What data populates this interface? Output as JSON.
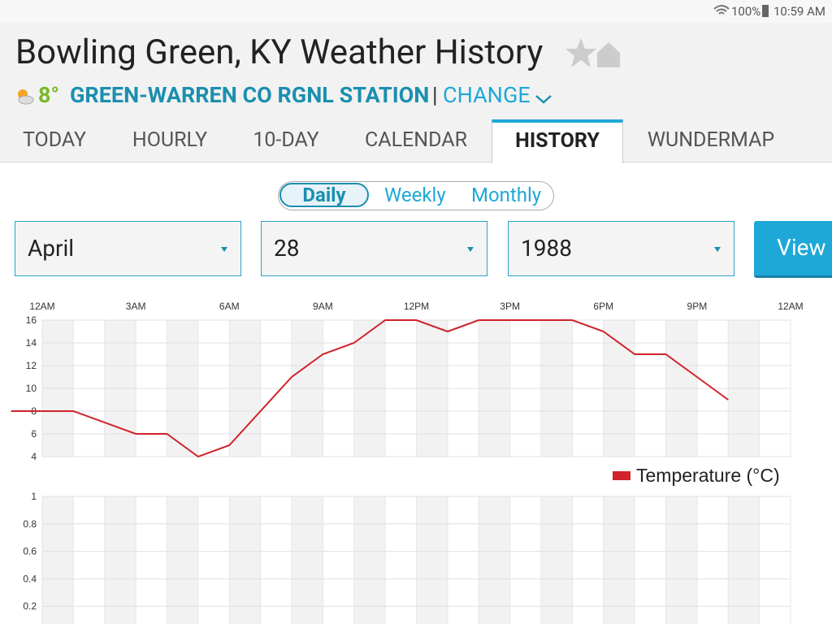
{
  "status_bar": {
    "battery": "100%",
    "time": "10:59 AM"
  },
  "header": {
    "title": "Bowling Green, KY Weather History",
    "temperature": "8°",
    "station": "GREEN-WARREN CO RGNL STATION",
    "separator": "|",
    "change": "CHANGE"
  },
  "tabs": [
    "TODAY",
    "HOURLY",
    "10-DAY",
    "CALENDAR",
    "HISTORY",
    "WUNDERMAP"
  ],
  "period_toggle": [
    "Daily",
    "Weekly",
    "Monthly"
  ],
  "selectors": [
    "April",
    "28",
    "1988"
  ],
  "button": "View",
  "chart_data": [
    {
      "type": "line",
      "x": [
        -1,
        1,
        3,
        4,
        5,
        6,
        8,
        9,
        10,
        11,
        12,
        13,
        14,
        17,
        18,
        19,
        20,
        21,
        22
      ],
      "series": [
        {
          "name": "Temperature (°C)",
          "color": "#d0232b",
          "values": [
            8,
            8,
            6,
            6,
            4,
            5,
            11,
            13,
            14,
            16,
            16,
            15,
            16,
            16,
            15,
            13,
            13,
            11,
            9
          ]
        }
      ],
      "xlim": [
        0,
        24
      ],
      "xticks": [
        {
          "value": 0,
          "label": "12AM"
        },
        {
          "value": 3,
          "label": "3AM"
        },
        {
          "value": 6,
          "label": "6AM"
        },
        {
          "value": 9,
          "label": "9AM"
        },
        {
          "value": 12,
          "label": "12PM"
        },
        {
          "value": 15,
          "label": "3PM"
        },
        {
          "value": 18,
          "label": "6PM"
        },
        {
          "value": 21,
          "label": "9PM"
        },
        {
          "value": 24,
          "label": "12AM"
        }
      ],
      "ylim": [
        4,
        16
      ],
      "yticks": [
        4,
        6,
        8,
        10,
        12,
        14,
        16
      ],
      "grid": true
    },
    {
      "type": "line",
      "series": [],
      "xlim": [
        0,
        24
      ],
      "ylim": [
        0,
        1
      ],
      "yticks": [
        0.2,
        0.4,
        0.6,
        0.8,
        1
      ],
      "grid": true
    }
  ]
}
